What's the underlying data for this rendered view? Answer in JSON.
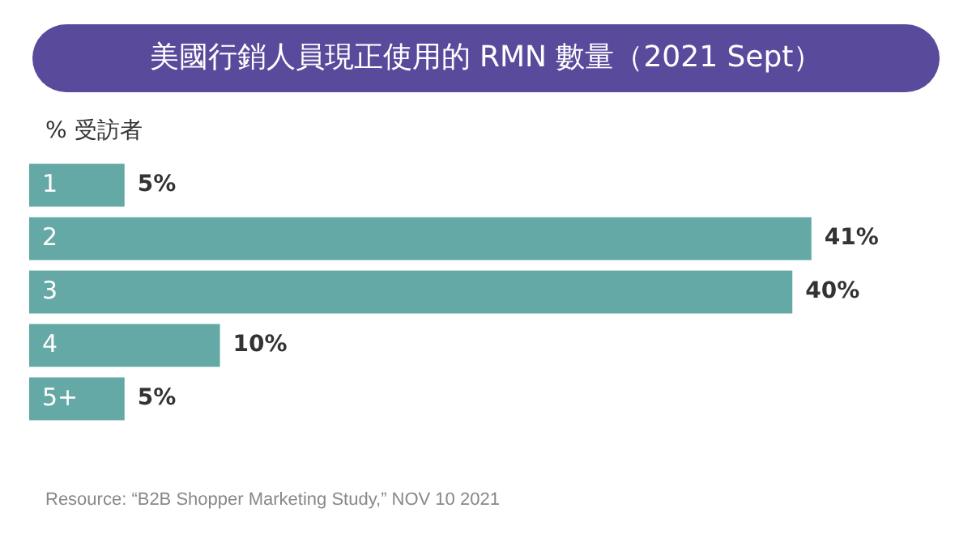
{
  "chart_data": {
    "type": "bar",
    "orientation": "horizontal",
    "title": "美國行銷人員現正使用的 RMN 數量（2021 Sept）",
    "xlabel": "% 受訪者",
    "categories": [
      "1",
      "2",
      "3",
      "4",
      "5+"
    ],
    "values": [
      5,
      41,
      40,
      10,
      5
    ],
    "value_labels": [
      "5%",
      "41%",
      "40%",
      "10%",
      "5%"
    ],
    "color": "#64a9a5",
    "annotations": [
      "Resource: “B2B Shopper Marketing Study,” NOV 10 2021"
    ],
    "grid": false,
    "legend": false
  }
}
